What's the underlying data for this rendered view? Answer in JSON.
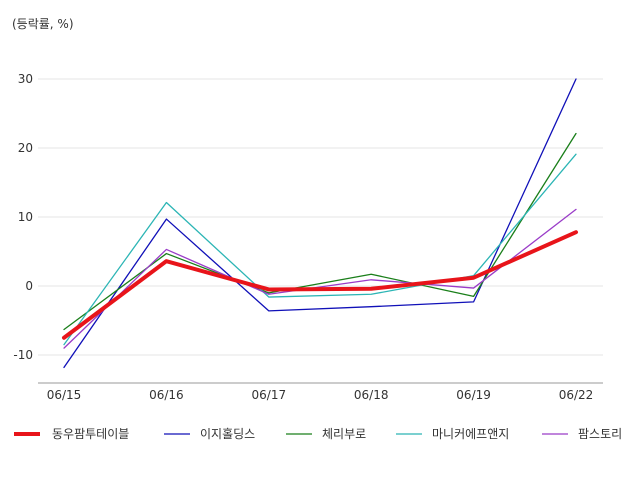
{
  "chart_data": {
    "type": "line",
    "ylabel": "(등락률, %)",
    "categories": [
      "06/15",
      "06/16",
      "06/17",
      "06/18",
      "06/19",
      "06/22"
    ],
    "ylim": [
      -14,
      33
    ],
    "yticks": [
      -10,
      0,
      10,
      20,
      30
    ],
    "grid": true,
    "legend_position": "bottom",
    "series": [
      {
        "name": "동우팜투테이블",
        "color": "#e8141a",
        "width": "thick",
        "values": [
          -7.5,
          3.6,
          -0.5,
          -0.4,
          1.2,
          7.8
        ]
      },
      {
        "name": "이지홀딩스",
        "color": "#1010b8",
        "width": "thin",
        "values": [
          -11.8,
          9.7,
          -3.6,
          -3.0,
          -2.3,
          30.0
        ]
      },
      {
        "name": "체리부로",
        "color": "#1a7f1a",
        "width": "thin",
        "values": [
          -6.3,
          4.7,
          -1.0,
          1.7,
          -1.5,
          22.1
        ]
      },
      {
        "name": "마니커에프앤지",
        "color": "#2cb5b5",
        "width": "thin",
        "values": [
          -8.5,
          12.1,
          -1.6,
          -1.2,
          1.5,
          19.1
        ]
      },
      {
        "name": "팜스토리",
        "color": "#9a3cc8",
        "width": "thin",
        "values": [
          -9.0,
          5.3,
          -1.2,
          0.9,
          -0.3,
          11.1
        ]
      }
    ]
  }
}
